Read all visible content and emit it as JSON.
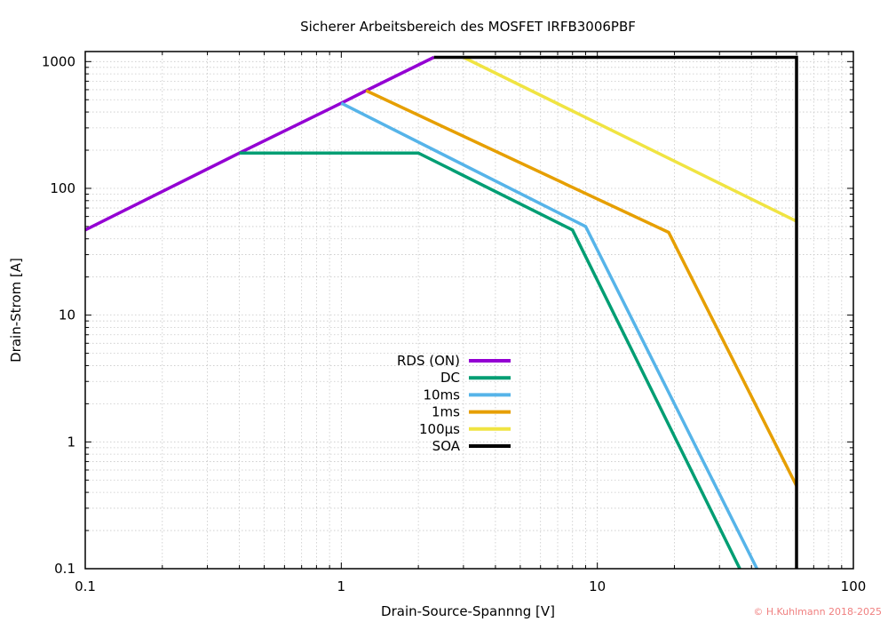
{
  "chart_data": {
    "type": "line",
    "title": "Sicherer Arbeitsbereich des MOSFET IRFB3006PBF",
    "xlabel": "Drain-Source-Spannng [V]",
    "ylabel": "Drain-Strom [A]",
    "xscale": "log",
    "yscale": "log",
    "xlim": [
      0.1,
      100
    ],
    "ylim": [
      0.1,
      1200
    ],
    "x_ticks": [
      {
        "value": 0.1,
        "label": "0.1"
      },
      {
        "value": 1,
        "label": "1"
      },
      {
        "value": 10,
        "label": "10"
      },
      {
        "value": 100,
        "label": "100"
      }
    ],
    "y_ticks": [
      {
        "value": 0.1,
        "label": "0.1"
      },
      {
        "value": 1,
        "label": "1"
      },
      {
        "value": 10,
        "label": "10"
      },
      {
        "value": 100,
        "label": "100"
      },
      {
        "value": 1000,
        "label": "1000"
      }
    ],
    "grid": true,
    "legend_position": "center-left",
    "series": [
      {
        "name": "RDS (ON)",
        "color": "#9400d3",
        "points": [
          [
            0.1,
            47
          ],
          [
            0.4,
            190
          ],
          [
            1,
            470
          ],
          [
            1.25,
            590
          ],
          [
            2.3,
            1080
          ]
        ]
      },
      {
        "name": "DC",
        "color": "#009e73",
        "points": [
          [
            0.4,
            190
          ],
          [
            2,
            190
          ],
          [
            8,
            47
          ],
          [
            36,
            0.1
          ]
        ]
      },
      {
        "name": "10ms",
        "color": "#56b4e9",
        "points": [
          [
            1,
            470
          ],
          [
            9,
            50
          ],
          [
            42,
            0.1
          ]
        ]
      },
      {
        "name": "1ms",
        "color": "#e69f00",
        "points": [
          [
            1.25,
            590
          ],
          [
            19,
            45
          ],
          [
            60,
            0.45
          ]
        ]
      },
      {
        "name": "100µs",
        "color": "#f0e442",
        "points": [
          [
            3,
            1080
          ],
          [
            60,
            55
          ]
        ]
      },
      {
        "name": "SOA",
        "color": "#000000",
        "points": [
          [
            2.3,
            1080
          ],
          [
            60,
            1080
          ],
          [
            60,
            0.1
          ]
        ]
      }
    ]
  },
  "credit": "© H.Kuhlmann 2018-2025",
  "credit_color": "#f08080"
}
